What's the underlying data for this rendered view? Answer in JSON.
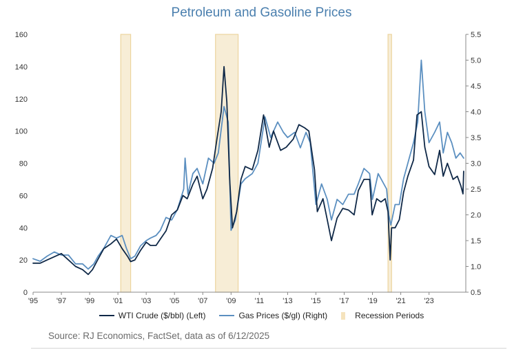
{
  "chart_data": {
    "type": "line",
    "title": "Petroleum and Gasoline Prices",
    "source": "Source: RJ Economics, FactSet, data as of 6/12/2025",
    "x_ticks": [
      "'95",
      "'97",
      "'99",
      "'01",
      "'03",
      "'05",
      "'07",
      "'09",
      "'11",
      "'13",
      "'15",
      "'17",
      "'19",
      "'21",
      "'23"
    ],
    "xlim": [
      1995.0,
      2025.6
    ],
    "y_left": {
      "lim": [
        0,
        160
      ],
      "ticks": [
        0,
        20,
        40,
        60,
        80,
        100,
        120,
        140,
        160
      ]
    },
    "y_right": {
      "lim": [
        0.5,
        5.5
      ],
      "ticks": [
        "0.5",
        "1.0",
        "1.5",
        "2.0",
        "2.5",
        "3.0",
        "3.5",
        "4.0",
        "4.5",
        "5.0",
        "5.5"
      ]
    },
    "recessions": [
      [
        2001.2,
        2001.9
      ],
      [
        2007.9,
        2009.5
      ],
      [
        2020.1,
        2020.35
      ]
    ],
    "series": [
      {
        "name": "WTI Crude ($/bbl) (Left)",
        "axis": "left",
        "color": "#0f2847",
        "x": [
          1995.0,
          1995.5,
          1996.0,
          1996.5,
          1997.0,
          1997.5,
          1998.0,
          1998.5,
          1998.9,
          1999.2,
          1999.5,
          2000.0,
          2000.5,
          2000.9,
          2001.3,
          2001.7,
          2001.9,
          2002.2,
          2002.6,
          2003.0,
          2003.3,
          2003.7,
          2004.0,
          2004.4,
          2004.8,
          2005.2,
          2005.6,
          2005.9,
          2006.3,
          2006.6,
          2007.0,
          2007.3,
          2007.7,
          2008.0,
          2008.3,
          2008.5,
          2008.7,
          2008.9,
          2009.1,
          2009.4,
          2009.7,
          2010.0,
          2010.5,
          2010.9,
          2011.3,
          2011.7,
          2012.0,
          2012.5,
          2012.9,
          2013.4,
          2013.8,
          2014.2,
          2014.5,
          2014.9,
          2015.1,
          2015.5,
          2015.8,
          2016.1,
          2016.5,
          2016.9,
          2017.3,
          2017.7,
          2018.0,
          2018.4,
          2018.8,
          2018.98,
          2019.3,
          2019.6,
          2019.9,
          2020.1,
          2020.25,
          2020.35,
          2020.6,
          2020.9,
          2021.2,
          2021.5,
          2021.9,
          2022.15,
          2022.45,
          2022.7,
          2023.0,
          2023.4,
          2023.75,
          2024.0,
          2024.3,
          2024.7,
          2025.0,
          2025.25,
          2025.4,
          2025.45
        ],
        "values": [
          18,
          18,
          20,
          22,
          24,
          20,
          16,
          14,
          11,
          14,
          19,
          27,
          30,
          33,
          27,
          22,
          19,
          20,
          26,
          31,
          29,
          29,
          33,
          38,
          48,
          51,
          60,
          58,
          67,
          72,
          58,
          64,
          77,
          95,
          112,
          140,
          118,
          70,
          40,
          50,
          70,
          78,
          76,
          88,
          110,
          90,
          100,
          88,
          90,
          95,
          104,
          102,
          100,
          76,
          50,
          58,
          45,
          32,
          46,
          52,
          51,
          48,
          63,
          70,
          70,
          48,
          58,
          56,
          58,
          50,
          20,
          40,
          40,
          45,
          62,
          72,
          82,
          110,
          112,
          90,
          78,
          73,
          88,
          72,
          80,
          70,
          72,
          66,
          61,
          75
        ]
      },
      {
        "name": "Gas Prices ($/gl) (Right)",
        "axis": "right",
        "color": "#5b8fc0",
        "x": [
          1995.0,
          1995.5,
          1996.0,
          1996.5,
          1997.0,
          1997.5,
          1998.0,
          1998.5,
          1998.9,
          1999.3,
          1999.6,
          2000.0,
          2000.5,
          2000.9,
          2001.3,
          2001.6,
          2001.9,
          2002.2,
          2002.6,
          2003.0,
          2003.3,
          2003.7,
          2004.0,
          2004.4,
          2004.8,
          2005.2,
          2005.65,
          2005.75,
          2005.95,
          2006.3,
          2006.6,
          2007.0,
          2007.4,
          2007.8,
          2008.1,
          2008.5,
          2008.8,
          2009.0,
          2009.3,
          2009.7,
          2010.0,
          2010.5,
          2010.9,
          2011.4,
          2011.8,
          2012.3,
          2012.7,
          2013.0,
          2013.5,
          2013.9,
          2014.3,
          2014.6,
          2015.0,
          2015.4,
          2015.8,
          2016.1,
          2016.5,
          2016.9,
          2017.3,
          2017.7,
          2018.0,
          2018.4,
          2018.8,
          2019.0,
          2019.4,
          2019.8,
          2020.0,
          2020.15,
          2020.3,
          2020.6,
          2020.9,
          2021.2,
          2021.6,
          2021.9,
          2022.2,
          2022.45,
          2022.7,
          2023.0,
          2023.4,
          2023.75,
          2024.0,
          2024.3,
          2024.6,
          2024.9,
          2025.2,
          2025.45
        ],
        "values": [
          1.15,
          1.1,
          1.2,
          1.28,
          1.22,
          1.22,
          1.05,
          1.05,
          0.95,
          1.05,
          1.2,
          1.35,
          1.6,
          1.55,
          1.6,
          1.35,
          1.15,
          1.2,
          1.4,
          1.5,
          1.55,
          1.6,
          1.7,
          1.95,
          1.9,
          2.1,
          2.5,
          3.1,
          2.4,
          2.8,
          2.9,
          2.6,
          3.1,
          3.0,
          3.2,
          4.1,
          3.8,
          1.7,
          1.9,
          2.6,
          2.7,
          2.8,
          3.0,
          3.9,
          3.5,
          3.8,
          3.6,
          3.5,
          3.6,
          3.3,
          3.6,
          3.4,
          2.2,
          2.6,
          2.3,
          1.9,
          2.3,
          2.2,
          2.4,
          2.4,
          2.6,
          2.9,
          2.8,
          2.3,
          2.8,
          2.6,
          2.5,
          2.0,
          1.8,
          2.2,
          2.2,
          2.7,
          3.1,
          3.4,
          3.8,
          5.0,
          4.0,
          3.4,
          3.6,
          3.8,
          3.2,
          3.6,
          3.4,
          3.1,
          3.2,
          3.1
        ]
      }
    ],
    "legend": {
      "wti": "WTI Crude ($/bbl) (Left)",
      "gas": "Gas Prices ($/gl) (Right)",
      "recession": "Recession Periods"
    },
    "colors": {
      "wti": "#0f2847",
      "gas": "#5b8fc0",
      "recession_fill": "#f7edd6",
      "recession_stroke": "#ecd49e",
      "title": "#4a7fae"
    },
    "grid": false,
    "legend_placement": "bottom"
  }
}
